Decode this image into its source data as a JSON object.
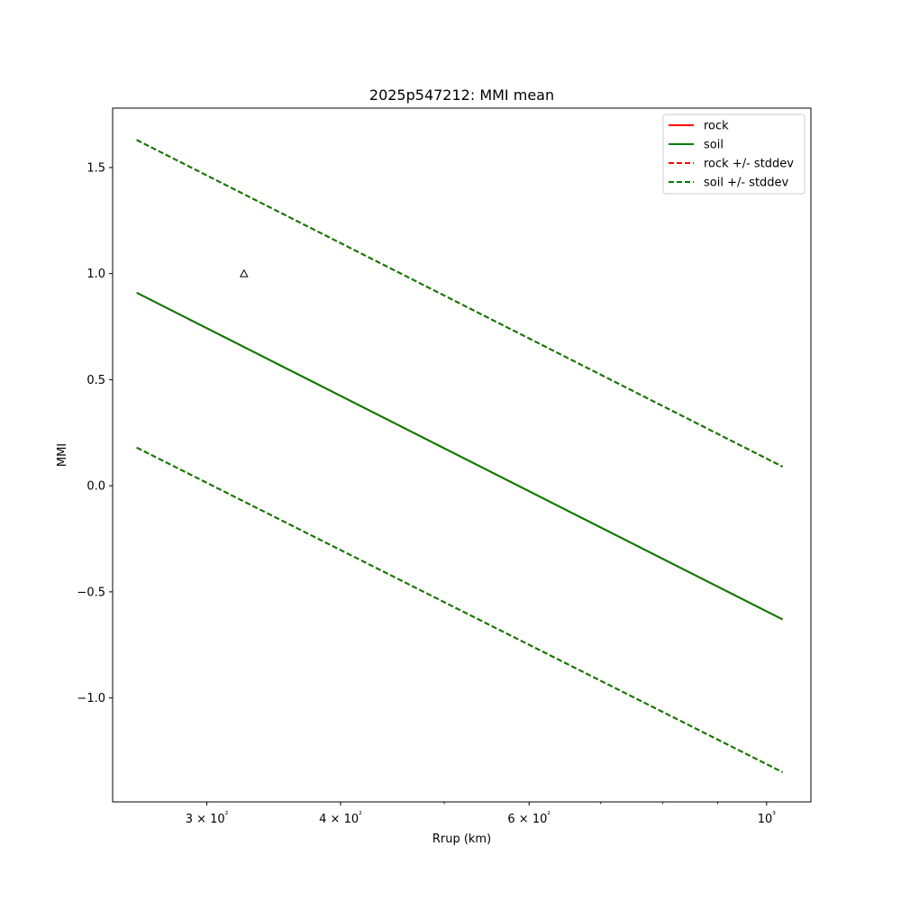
{
  "chart_data": {
    "type": "line",
    "title": "2025p547212: MMI mean",
    "xlabel": "Rrup (km)",
    "ylabel": "MMI",
    "xscale": "log",
    "xlim": [
      245,
      1100
    ],
    "ylim": [
      -1.49,
      1.78
    ],
    "x_ticks": [
      {
        "value": 300,
        "label": "3 × 10²"
      },
      {
        "value": 400,
        "label": "4 × 10²"
      },
      {
        "value": 600,
        "label": "6 × 10²"
      },
      {
        "value": 1000,
        "label": "10³"
      }
    ],
    "x_minor_ticks": [
      500,
      700,
      800,
      900
    ],
    "y_ticks": [
      {
        "value": -1.0,
        "label": "−1.0"
      },
      {
        "value": -0.5,
        "label": "−0.5"
      },
      {
        "value": 0.0,
        "label": "0.0"
      },
      {
        "value": 0.5,
        "label": "0.5"
      },
      {
        "value": 1.0,
        "label": "1.0"
      },
      {
        "value": 1.5,
        "label": "1.5"
      }
    ],
    "grid": false,
    "legend_position": "top-right",
    "series": [
      {
        "name": "rock",
        "color": "#ff0000",
        "style": "solid",
        "x": [
          258,
          1035
        ],
        "y": [
          0.91,
          -0.63
        ]
      },
      {
        "name": "soil",
        "color": "#008000",
        "style": "solid",
        "x": [
          258,
          1035
        ],
        "y": [
          0.91,
          -0.63
        ]
      },
      {
        "name": "rock +/- stddev",
        "color": "#ff0000",
        "style": "dashed",
        "x": [
          258,
          1035
        ],
        "y": [
          1.63,
          0.09
        ],
        "x2": [
          258,
          1035
        ],
        "y2": [
          0.18,
          -1.35
        ]
      },
      {
        "name": "soil +/- stddev",
        "color": "#008000",
        "style": "dashed",
        "x": [
          258,
          1035
        ],
        "y": [
          1.63,
          0.09
        ],
        "x2": [
          258,
          1035
        ],
        "y2": [
          0.18,
          -1.35
        ]
      }
    ],
    "observations": [
      {
        "marker": "triangle",
        "x": 325,
        "y": 1.0,
        "color": "#000000"
      }
    ]
  }
}
